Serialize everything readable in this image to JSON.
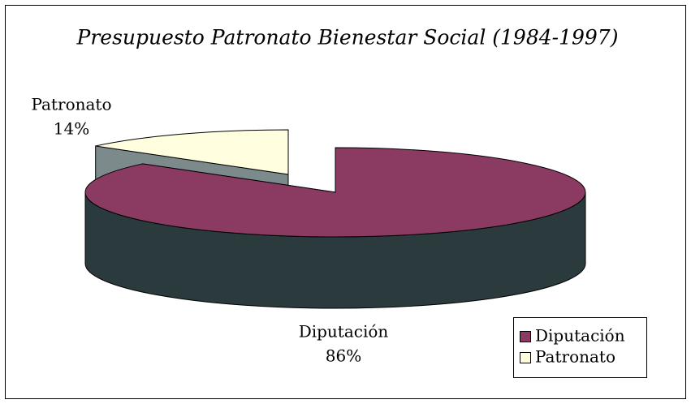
{
  "chart_data": {
    "type": "pie",
    "title": "Presupuesto Patronato Bienestar Social (1984-1997)",
    "categories": [
      "Diputación",
      "Patronato"
    ],
    "values": [
      86,
      14
    ],
    "value_labels": [
      "86%",
      "14%"
    ],
    "colors": [
      "#8b3a62",
      "#ffffe0"
    ],
    "legend": "bottom-right"
  }
}
